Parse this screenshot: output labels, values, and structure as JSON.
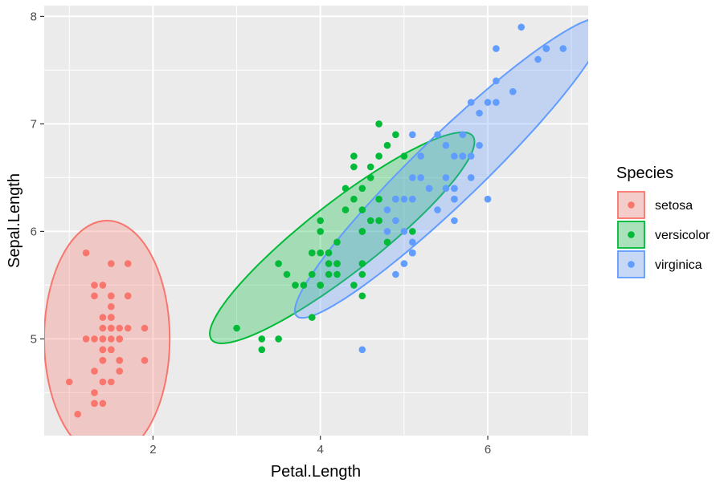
{
  "chart_data": {
    "type": "scatter",
    "title": "",
    "xlabel": "Petal.Length",
    "ylabel": "Sepal.Length",
    "xlim": [
      0.7,
      7.2
    ],
    "ylim": [
      4.1,
      8.1
    ],
    "xticks": [
      2,
      4,
      6
    ],
    "yticks": [
      5,
      6,
      7,
      8
    ],
    "x_tick_labels": [
      "2",
      "4",
      "6"
    ],
    "y_tick_labels": [
      "5",
      "6",
      "7",
      "8"
    ],
    "grid": true,
    "legend": {
      "title": "Species",
      "placement": "right"
    },
    "series": [
      {
        "name": "setosa",
        "color": "#F8766D",
        "ellipse": {
          "cx": 1.45,
          "cy": 5.0,
          "rx": 0.75,
          "ry": 1.1,
          "angle": 0
        },
        "points": [
          [
            1.4,
            5.1
          ],
          [
            1.4,
            4.9
          ],
          [
            1.3,
            4.7
          ],
          [
            1.5,
            4.6
          ],
          [
            1.4,
            5.0
          ],
          [
            1.7,
            5.4
          ],
          [
            1.4,
            4.6
          ],
          [
            1.5,
            5.0
          ],
          [
            1.4,
            4.4
          ],
          [
            1.5,
            4.9
          ],
          [
            1.5,
            5.4
          ],
          [
            1.6,
            4.8
          ],
          [
            1.4,
            4.8
          ],
          [
            1.1,
            4.3
          ],
          [
            1.2,
            5.8
          ],
          [
            1.5,
            5.7
          ],
          [
            1.3,
            5.4
          ],
          [
            1.4,
            5.1
          ],
          [
            1.7,
            5.7
          ],
          [
            1.5,
            5.1
          ],
          [
            1.7,
            5.4
          ],
          [
            1.5,
            5.1
          ],
          [
            1.0,
            4.6
          ],
          [
            1.7,
            5.1
          ],
          [
            1.9,
            4.8
          ],
          [
            1.6,
            5.0
          ],
          [
            1.6,
            5.0
          ],
          [
            1.5,
            5.2
          ],
          [
            1.4,
            5.2
          ],
          [
            1.6,
            4.7
          ],
          [
            1.6,
            4.8
          ],
          [
            1.5,
            5.4
          ],
          [
            1.5,
            5.2
          ],
          [
            1.4,
            5.5
          ],
          [
            1.5,
            4.9
          ],
          [
            1.2,
            5.0
          ],
          [
            1.3,
            5.5
          ],
          [
            1.4,
            4.9
          ],
          [
            1.3,
            4.4
          ],
          [
            1.5,
            5.1
          ],
          [
            1.3,
            5.0
          ],
          [
            1.3,
            4.5
          ],
          [
            1.3,
            4.4
          ],
          [
            1.6,
            5.0
          ],
          [
            1.9,
            5.1
          ],
          [
            1.4,
            4.8
          ],
          [
            1.6,
            5.1
          ],
          [
            1.4,
            4.6
          ],
          [
            1.5,
            5.3
          ],
          [
            1.4,
            5.0
          ]
        ]
      },
      {
        "name": "versicolor",
        "color": "#00BA38",
        "ellipse": {
          "cx": 4.26,
          "cy": 5.94,
          "rx": 1.98,
          "ry": 0.42,
          "angle": -38
        },
        "points": [
          [
            4.7,
            7.0
          ],
          [
            4.5,
            6.4
          ],
          [
            4.9,
            6.9
          ],
          [
            4.0,
            5.5
          ],
          [
            4.6,
            6.5
          ],
          [
            4.5,
            5.7
          ],
          [
            4.7,
            6.3
          ],
          [
            3.3,
            4.9
          ],
          [
            4.6,
            6.6
          ],
          [
            3.9,
            5.2
          ],
          [
            3.5,
            5.0
          ],
          [
            4.2,
            5.9
          ],
          [
            4.0,
            6.0
          ],
          [
            4.7,
            6.1
          ],
          [
            3.6,
            5.6
          ],
          [
            4.4,
            6.7
          ],
          [
            4.5,
            5.6
          ],
          [
            4.1,
            5.8
          ],
          [
            4.5,
            6.2
          ],
          [
            3.9,
            5.6
          ],
          [
            4.8,
            5.9
          ],
          [
            4.0,
            6.1
          ],
          [
            4.9,
            6.3
          ],
          [
            4.7,
            6.1
          ],
          [
            4.3,
            6.4
          ],
          [
            4.4,
            6.6
          ],
          [
            4.8,
            6.8
          ],
          [
            5.0,
            6.7
          ],
          [
            4.5,
            6.0
          ],
          [
            3.5,
            5.7
          ],
          [
            3.8,
            5.5
          ],
          [
            3.7,
            5.5
          ],
          [
            3.9,
            5.8
          ],
          [
            5.1,
            6.0
          ],
          [
            4.5,
            5.4
          ],
          [
            4.5,
            6.0
          ],
          [
            4.7,
            6.7
          ],
          [
            4.4,
            6.3
          ],
          [
            4.1,
            5.6
          ],
          [
            4.0,
            5.5
          ],
          [
            4.4,
            5.5
          ],
          [
            4.6,
            6.1
          ],
          [
            4.0,
            5.8
          ],
          [
            3.3,
            5.0
          ],
          [
            4.2,
            5.6
          ],
          [
            4.2,
            5.7
          ],
          [
            4.2,
            5.7
          ],
          [
            4.3,
            6.2
          ],
          [
            3.0,
            5.1
          ],
          [
            4.1,
            5.7
          ]
        ]
      },
      {
        "name": "virginica",
        "color": "#619CFF",
        "ellipse": {
          "cx": 5.55,
          "cy": 6.59,
          "rx": 2.55,
          "ry": 0.4,
          "angle": -44
        },
        "points": [
          [
            6.0,
            6.3
          ],
          [
            5.1,
            5.8
          ],
          [
            5.9,
            7.1
          ],
          [
            5.6,
            6.3
          ],
          [
            5.8,
            6.5
          ],
          [
            6.6,
            7.6
          ],
          [
            4.5,
            4.9
          ],
          [
            6.3,
            7.3
          ],
          [
            5.8,
            6.7
          ],
          [
            6.1,
            7.2
          ],
          [
            5.1,
            6.5
          ],
          [
            5.3,
            6.4
          ],
          [
            5.5,
            6.8
          ],
          [
            5.0,
            5.7
          ],
          [
            5.1,
            5.8
          ],
          [
            5.3,
            6.4
          ],
          [
            5.5,
            6.5
          ],
          [
            6.7,
            7.7
          ],
          [
            6.9,
            7.7
          ],
          [
            5.0,
            6.0
          ],
          [
            5.7,
            6.9
          ],
          [
            4.9,
            5.6
          ],
          [
            6.7,
            7.7
          ],
          [
            4.9,
            6.3
          ],
          [
            5.7,
            6.7
          ],
          [
            6.0,
            7.2
          ],
          [
            4.8,
            6.2
          ],
          [
            4.9,
            6.1
          ],
          [
            5.6,
            6.4
          ],
          [
            5.8,
            7.2
          ],
          [
            6.1,
            7.4
          ],
          [
            6.4,
            7.9
          ],
          [
            5.6,
            6.4
          ],
          [
            5.1,
            6.3
          ],
          [
            5.6,
            6.1
          ],
          [
            6.1,
            7.7
          ],
          [
            5.6,
            6.3
          ],
          [
            5.5,
            6.4
          ],
          [
            4.8,
            6.0
          ],
          [
            5.4,
            6.9
          ],
          [
            5.6,
            6.7
          ],
          [
            5.1,
            6.9
          ],
          [
            5.1,
            5.8
          ],
          [
            5.9,
            6.8
          ],
          [
            5.7,
            6.7
          ],
          [
            5.2,
            6.7
          ],
          [
            5.0,
            6.3
          ],
          [
            5.2,
            6.5
          ],
          [
            5.4,
            6.2
          ],
          [
            5.1,
            5.9
          ]
        ]
      }
    ]
  }
}
